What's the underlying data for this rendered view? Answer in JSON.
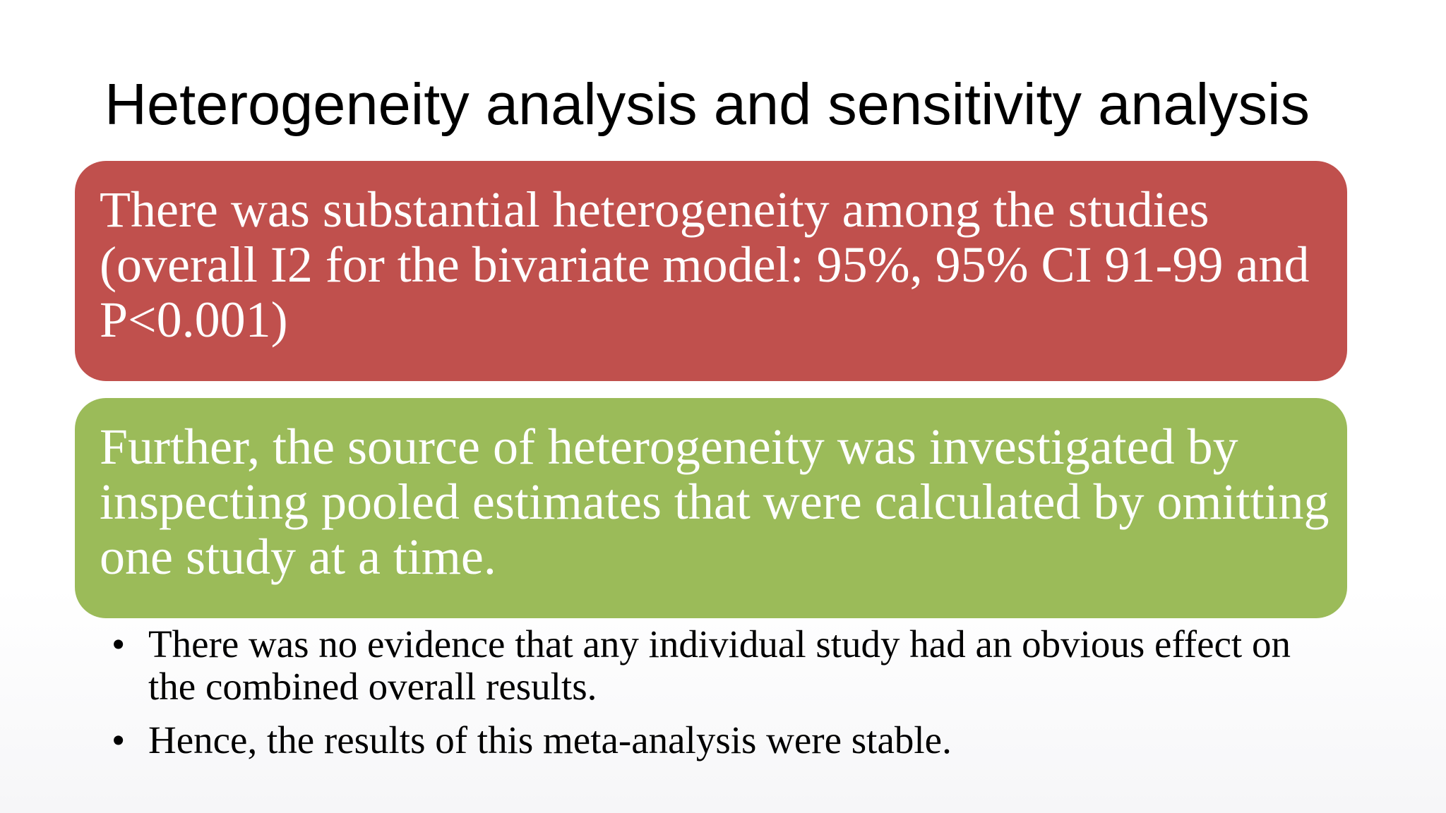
{
  "slide": {
    "title": "Heterogeneity analysis and sensitivity analysis",
    "boxes": [
      {
        "text": "There was substantial heterogeneity among the studies (overall I2 for the bivariate model: 95%, 95% CI 91-99 and P<0.001)",
        "color": "#c0504d"
      },
      {
        "text": "Further, the source of heterogeneity was investigated by inspecting pooled estimates that were calculated by omitting one study at a time.",
        "color": "#9bbb59"
      }
    ],
    "bullet_symbol": "•",
    "bullets": [
      "There was no evidence that any individual study had an obvious effect on the combined overall results.",
      "Hence, the results of this meta-analysis were stable."
    ]
  }
}
